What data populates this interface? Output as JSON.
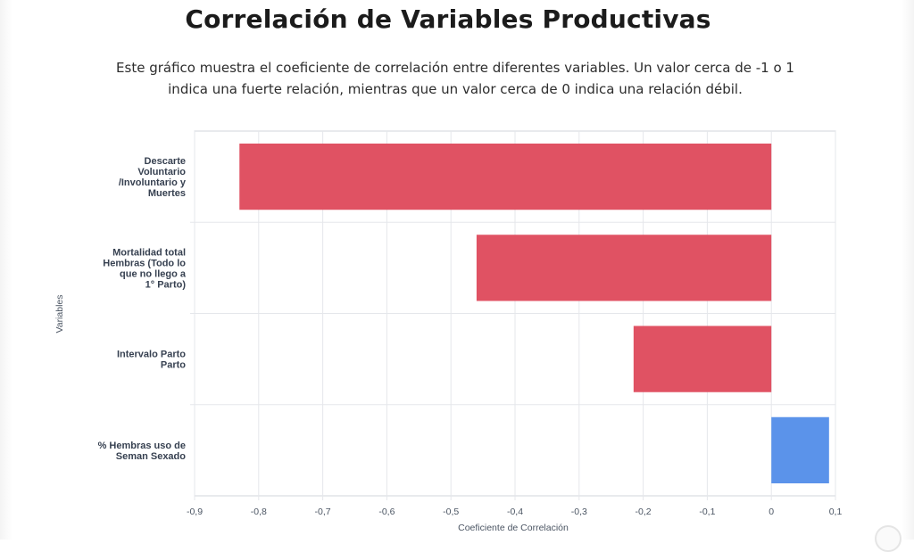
{
  "page": {
    "title": "Correlación de Variables Productivas",
    "subtitle_line1": "Este gráfico muestra el coeficiente de correlación entre diferentes variables. Un valor cerca de -1 o 1",
    "subtitle_line2": "indica una fuerte relación, mientras que un valor cerca de 0 indica una relación débil."
  },
  "colors": {
    "negative": "#e05263",
    "positive": "#5b93ea",
    "grid": "#e5e7eb",
    "plot_border": "#d1d5db"
  },
  "chart_data": {
    "type": "bar",
    "orientation": "horizontal",
    "xlabel": "Coeficiente de Correlación",
    "ylabel": "Variables",
    "xlim": [
      -0.9,
      0.1
    ],
    "xticks": [
      -0.9,
      -0.8,
      -0.7,
      -0.6,
      -0.5,
      -0.4,
      -0.3,
      -0.2,
      -0.1,
      0,
      0.1
    ],
    "xtick_labels": [
      "-0,9",
      "-0,8",
      "-0,7",
      "-0,6",
      "-0,5",
      "-0,4",
      "-0,3",
      "-0,2",
      "-0,1",
      "0",
      "0,1"
    ],
    "grid": true,
    "categories": [
      [
        "Descarte",
        "Voluntario",
        "/Involuntario y",
        "Muertes"
      ],
      [
        "Mortalidad total",
        "Hembras (Todo lo",
        "que no llego a",
        "1° Parto)"
      ],
      [
        "Intervalo Parto",
        "Parto"
      ],
      [
        "% Hembras uso de",
        "Seman Sexado"
      ]
    ],
    "values": [
      -0.83,
      -0.46,
      -0.215,
      0.09
    ]
  }
}
